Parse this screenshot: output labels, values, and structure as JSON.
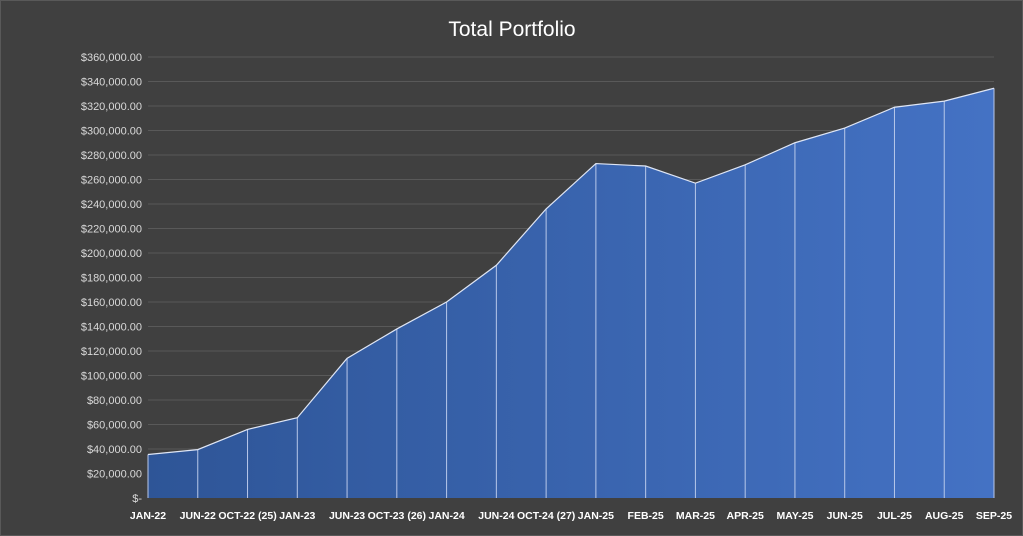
{
  "chart_data": {
    "type": "area",
    "title": "Total Portfolio",
    "xlabel": "",
    "ylabel": "",
    "categories": [
      "JAN-22",
      "JUN-22",
      "OCT-22 (25)",
      "JAN-23",
      "JUN-23",
      "OCT-23 (26)",
      "JAN-24",
      "JUN-24",
      "OCT-24 (27)",
      "JAN-25",
      "FEB-25",
      "MAR-25",
      "APR-25",
      "MAY-25",
      "JUN-25",
      "JUL-25",
      "AUG-25",
      "SEP-25"
    ],
    "series": [
      {
        "values": [
          35500,
          39500,
          56000,
          65500,
          114000,
          138000,
          160000,
          190000,
          236000,
          273000,
          271000,
          257000,
          272000,
          290000,
          302000,
          319000,
          324000,
          334500
        ]
      }
    ],
    "ylim": [
      0,
      360000
    ],
    "y_ticks": [
      "$-",
      "$20,000.00",
      "$40,000.00",
      "$60,000.00",
      "$80,000.00",
      "$100,000.00",
      "$120,000.00",
      "$140,000.00",
      "$160,000.00",
      "$180,000.00",
      "$200,000.00",
      "$220,000.00",
      "$240,000.00",
      "$260,000.00",
      "$280,000.00",
      "$300,000.00",
      "$320,000.00",
      "$340,000.00",
      "$360,000.00"
    ],
    "grid": true,
    "legend": "none",
    "colors": {
      "background": "#404040",
      "area_top": "#4472c4",
      "area_bottom": "#2e5597",
      "gridline": "#595959"
    }
  }
}
